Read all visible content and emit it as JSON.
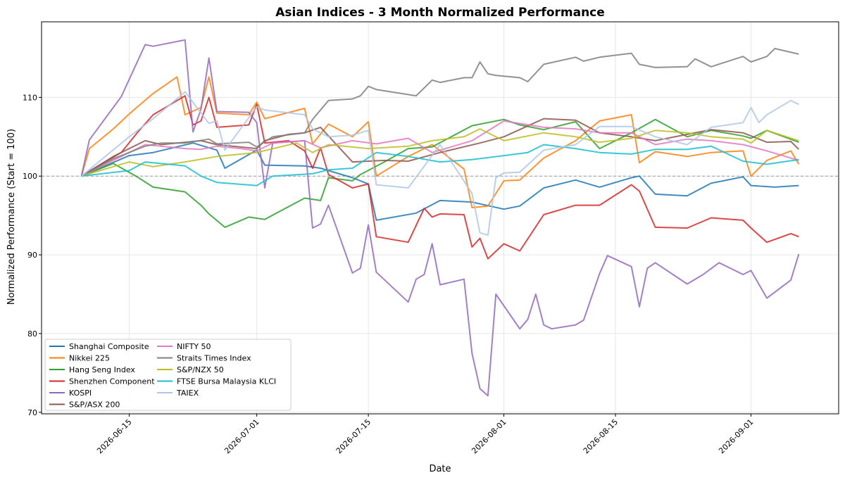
{
  "chart_data": {
    "type": "line",
    "title": "Asian Indices - 3 Month Normalized Performance",
    "xlabel": "Date",
    "ylabel": "Normalized Performance (Start = 100)",
    "xlim": [
      "2026-06-04",
      "2026-09-12"
    ],
    "ylim": [
      69.8,
      119.6
    ],
    "x_ticks": [
      "2026-06-15",
      "2026-07-01",
      "2026-07-15",
      "2026-08-01",
      "2026-08-15",
      "2026-09-01"
    ],
    "y_ticks": [
      70,
      80,
      90,
      100,
      110
    ],
    "reference_line": 100,
    "grid": true,
    "legend_position": "lower-left",
    "series": [
      {
        "name": "Shanghai Composite",
        "color": "#1f77b4",
        "x": [
          "2026-06-09",
          "2026-06-15",
          "2026-06-18",
          "2026-06-23",
          "2026-06-26",
          "2026-06-27",
          "2026-07-01",
          "2026-07-02",
          "2026-07-07",
          "2026-07-09",
          "2026-07-13",
          "2026-07-15",
          "2026-07-16",
          "2026-07-21",
          "2026-07-24",
          "2026-07-28",
          "2026-08-01",
          "2026-08-03",
          "2026-08-06",
          "2026-08-10",
          "2026-08-13",
          "2026-08-17",
          "2026-08-18",
          "2026-08-20",
          "2026-08-24",
          "2026-08-27",
          "2026-08-31",
          "2026-09-01",
          "2026-09-04",
          "2026-09-07"
        ],
        "values": [
          100,
          102.6,
          103,
          104.2,
          103.3,
          101.0,
          103.3,
          101.4,
          101.3,
          101.0,
          99.8,
          99.0,
          94.4,
          95.3,
          96.9,
          96.7,
          95.8,
          96.2,
          98.5,
          99.5,
          98.6,
          99.8,
          100.0,
          97.7,
          97.5,
          99.1,
          99.9,
          98.8,
          98.6,
          98.8
        ]
      },
      {
        "name": "Nikkei 225",
        "color": "#ff7f0e",
        "x": [
          "2026-06-09",
          "2026-06-10",
          "2026-06-13",
          "2026-06-15",
          "2026-06-18",
          "2026-06-21",
          "2026-06-22",
          "2026-06-24",
          "2026-06-25",
          "2026-06-26",
          "2026-06-30",
          "2026-07-01",
          "2026-07-02",
          "2026-07-07",
          "2026-07-08",
          "2026-07-10",
          "2026-07-13",
          "2026-07-15",
          "2026-07-16",
          "2026-07-20",
          "2026-07-23",
          "2026-07-27",
          "2026-07-28",
          "2026-07-30",
          "2026-08-01",
          "2026-08-03",
          "2026-08-06",
          "2026-08-10",
          "2026-08-13",
          "2026-08-17",
          "2026-08-18",
          "2026-08-20",
          "2026-08-24",
          "2026-08-27",
          "2026-08-31",
          "2026-09-01",
          "2026-09-03",
          "2026-09-06",
          "2026-09-07"
        ],
        "values": [
          100,
          103.5,
          106,
          107.9,
          110.5,
          112.6,
          107.8,
          108.7,
          112.6,
          108.0,
          107.8,
          109.4,
          107.3,
          108.6,
          104.1,
          106.6,
          105.0,
          106.9,
          100.0,
          102.5,
          104.0,
          100.9,
          96.0,
          96.2,
          99.4,
          99.5,
          102.3,
          104.5,
          107.0,
          107.8,
          101.7,
          103.1,
          102.5,
          103.0,
          103.2,
          100.0,
          102.0,
          103.2,
          101.5
        ]
      },
      {
        "name": "Hang Seng Index",
        "color": "#2ca02c",
        "x": [
          "2026-06-09",
          "2026-06-13",
          "2026-06-16",
          "2026-06-18",
          "2026-06-22",
          "2026-06-24",
          "2026-06-25",
          "2026-06-27",
          "2026-06-30",
          "2026-07-02",
          "2026-07-07",
          "2026-07-09",
          "2026-07-10",
          "2026-07-13",
          "2026-07-14",
          "2026-07-17",
          "2026-07-20",
          "2026-07-23",
          "2026-07-28",
          "2026-08-01",
          "2026-08-03",
          "2026-08-06",
          "2026-08-10",
          "2026-08-13",
          "2026-08-17",
          "2026-08-20",
          "2026-08-24",
          "2026-08-27",
          "2026-08-31",
          "2026-09-01",
          "2026-09-03",
          "2026-09-07"
        ],
        "values": [
          100,
          101.6,
          99.9,
          98.6,
          98.0,
          96.3,
          95.2,
          93.5,
          94.8,
          94.5,
          97.2,
          96.9,
          99.8,
          99.4,
          100.2,
          101.8,
          103.5,
          103.7,
          106.4,
          107.2,
          106.5,
          105.9,
          106.9,
          103.5,
          105.5,
          107.2,
          105.0,
          105.8,
          105.1,
          104.8,
          105.8,
          104.3
        ]
      },
      {
        "name": "Shenzhen Component",
        "color": "#d62728",
        "x": [
          "2026-06-09",
          "2026-06-14",
          "2026-06-16",
          "2026-06-18",
          "2026-06-22",
          "2026-06-23",
          "2026-06-24",
          "2026-06-25",
          "2026-06-26",
          "2026-06-30",
          "2026-07-01",
          "2026-07-02",
          "2026-07-05",
          "2026-07-07",
          "2026-07-08",
          "2026-07-09",
          "2026-07-10",
          "2026-07-13",
          "2026-07-15",
          "2026-07-16",
          "2026-07-20",
          "2026-07-22",
          "2026-07-23",
          "2026-07-24",
          "2026-07-27",
          "2026-07-28",
          "2026-07-29",
          "2026-07-30",
          "2026-08-01",
          "2026-08-03",
          "2026-08-06",
          "2026-08-10",
          "2026-08-13",
          "2026-08-17",
          "2026-08-18",
          "2026-08-20",
          "2026-08-24",
          "2026-08-27",
          "2026-08-31",
          "2026-09-01",
          "2026-09-03",
          "2026-09-06",
          "2026-09-07"
        ],
        "values": [
          100,
          103,
          105.5,
          107.8,
          110.2,
          106.5,
          107.0,
          110.0,
          106.2,
          106.5,
          109.1,
          104.2,
          104.5,
          103.2,
          101.0,
          103.6,
          100.2,
          98.5,
          99.0,
          92.3,
          91.6,
          95.9,
          94.8,
          95.2,
          95.1,
          91.0,
          92.1,
          89.5,
          91.4,
          90.5,
          95.1,
          96.3,
          96.3,
          98.9,
          98.1,
          93.5,
          93.4,
          94.7,
          94.4,
          93.4,
          91.6,
          92.7,
          92.3
        ]
      },
      {
        "name": "KOSPI",
        "color": "#9467bd",
        "x": [
          "2026-06-09",
          "2026-06-10",
          "2026-06-14",
          "2026-06-17",
          "2026-06-18",
          "2026-06-22",
          "2026-06-23",
          "2026-06-24",
          "2026-06-25",
          "2026-06-26",
          "2026-06-30",
          "2026-07-01",
          "2026-07-02",
          "2026-07-03",
          "2026-07-07",
          "2026-07-08",
          "2026-07-09",
          "2026-07-10",
          "2026-07-13",
          "2026-07-14",
          "2026-07-15",
          "2026-07-16",
          "2026-07-20",
          "2026-07-21",
          "2026-07-22",
          "2026-07-23",
          "2026-07-24",
          "2026-07-27",
          "2026-07-28",
          "2026-07-29",
          "2026-07-30",
          "2026-07-31",
          "2026-08-03",
          "2026-08-04",
          "2026-08-05",
          "2026-08-06",
          "2026-08-07",
          "2026-08-10",
          "2026-08-11",
          "2026-08-13",
          "2026-08-14",
          "2026-08-17",
          "2026-08-18",
          "2026-08-19",
          "2026-08-20",
          "2026-08-24",
          "2026-08-26",
          "2026-08-28",
          "2026-08-31",
          "2026-09-01",
          "2026-09-03",
          "2026-09-06",
          "2026-09-07"
        ],
        "values": [
          100,
          104.6,
          110.1,
          116.7,
          116.5,
          117.3,
          105.6,
          108.5,
          115.0,
          108.2,
          108.1,
          106.8,
          98.5,
          104.2,
          104.5,
          93.4,
          93.9,
          96.3,
          87.7,
          88.3,
          93.8,
          87.8,
          84.0,
          86.9,
          87.5,
          91.4,
          86.2,
          86.9,
          77.5,
          73.0,
          72.1,
          85.0,
          80.6,
          81.8,
          85.0,
          81.1,
          80.6,
          81.1,
          81.7,
          87.6,
          89.9,
          88.5,
          83.4,
          88.3,
          89.0,
          86.3,
          87.5,
          89.0,
          87.5,
          88.0,
          84.5,
          86.8,
          90.1
        ]
      },
      {
        "name": "S&P/ASX 200",
        "color": "#8c564b",
        "x": [
          "2026-06-09",
          "2026-06-13",
          "2026-06-17",
          "2026-06-19",
          "2026-06-24",
          "2026-06-26",
          "2026-07-01",
          "2026-07-02",
          "2026-07-05",
          "2026-07-07",
          "2026-07-09",
          "2026-07-13",
          "2026-07-17",
          "2026-07-20",
          "2026-07-24",
          "2026-07-29",
          "2026-08-01",
          "2026-08-06",
          "2026-08-10",
          "2026-08-13",
          "2026-08-17",
          "2026-08-20",
          "2026-08-24",
          "2026-08-27",
          "2026-08-31",
          "2026-09-03",
          "2026-09-06",
          "2026-09-07"
        ],
        "values": [
          100,
          102.5,
          104.5,
          104.0,
          104.5,
          104.0,
          103.5,
          104.5,
          105.3,
          105.5,
          106.2,
          101.8,
          102.0,
          101.9,
          103.0,
          104.2,
          105.0,
          107.3,
          107.1,
          105.5,
          105.0,
          104.5,
          105.3,
          105.9,
          105.5,
          104.3,
          104.4,
          103.4
        ]
      },
      {
        "name": "NIFTY 50",
        "color": "#e377c2",
        "x": [
          "2026-06-09",
          "2026-06-15",
          "2026-06-17",
          "2026-06-22",
          "2026-06-24",
          "2026-06-26",
          "2026-06-29",
          "2026-07-01",
          "2026-07-03",
          "2026-07-07",
          "2026-07-09",
          "2026-07-13",
          "2026-07-16",
          "2026-07-20",
          "2026-07-23",
          "2026-07-28",
          "2026-08-01",
          "2026-08-06",
          "2026-08-10",
          "2026-08-13",
          "2026-08-17",
          "2026-08-20",
          "2026-08-24",
          "2026-08-27",
          "2026-08-31",
          "2026-09-03",
          "2026-09-07"
        ],
        "values": [
          100,
          103.0,
          104.0,
          103.5,
          103.4,
          103.8,
          103.5,
          103.2,
          104.2,
          104.5,
          103.6,
          104.5,
          104.1,
          104.8,
          103.0,
          104.5,
          107.0,
          106.2,
          106.0,
          105.5,
          105.5,
          104.0,
          104.7,
          104.5,
          104.0,
          103.2,
          102.0
        ]
      },
      {
        "name": "Straits Times Index",
        "color": "#7f7f7f",
        "x": [
          "2026-06-09",
          "2026-06-13",
          "2026-06-17",
          "2026-06-19",
          "2026-06-22",
          "2026-06-25",
          "2026-06-26",
          "2026-06-30",
          "2026-07-01",
          "2026-07-03",
          "2026-07-07",
          "2026-07-08",
          "2026-07-10",
          "2026-07-13",
          "2026-07-14",
          "2026-07-15",
          "2026-07-16",
          "2026-07-21",
          "2026-07-22",
          "2026-07-23",
          "2026-07-24",
          "2026-07-27",
          "2026-07-28",
          "2026-07-29",
          "2026-07-30",
          "2026-07-31",
          "2026-08-03",
          "2026-08-04",
          "2026-08-06",
          "2026-08-10",
          "2026-08-11",
          "2026-08-13",
          "2026-08-17",
          "2026-08-18",
          "2026-08-20",
          "2026-08-24",
          "2026-08-25",
          "2026-08-27",
          "2026-08-31",
          "2026-09-01",
          "2026-09-03",
          "2026-09-04",
          "2026-09-07"
        ],
        "values": [
          100,
          102.2,
          103.8,
          104.2,
          104.2,
          104.7,
          104.1,
          104.3,
          103.7,
          105.0,
          105.5,
          107.2,
          109.6,
          109.8,
          110.2,
          111.4,
          111.0,
          110.2,
          111.2,
          112.2,
          111.9,
          112.5,
          112.5,
          114.5,
          113.0,
          112.8,
          112.5,
          112.0,
          114.2,
          115.1,
          114.6,
          115.1,
          115.6,
          114.2,
          113.8,
          113.9,
          114.9,
          113.9,
          115.2,
          114.5,
          115.2,
          116.2,
          115.5
        ]
      },
      {
        "name": "S&P/NZX 50",
        "color": "#bcbd22",
        "x": [
          "2026-06-09",
          "2026-06-15",
          "2026-06-18",
          "2026-06-22",
          "2026-06-26",
          "2026-07-01",
          "2026-07-06",
          "2026-07-08",
          "2026-07-10",
          "2026-07-15",
          "2026-07-20",
          "2026-07-23",
          "2026-07-27",
          "2026-07-29",
          "2026-08-01",
          "2026-08-06",
          "2026-08-10",
          "2026-08-13",
          "2026-08-17",
          "2026-08-20",
          "2026-08-24",
          "2026-08-27",
          "2026-08-31",
          "2026-09-01",
          "2026-09-03",
          "2026-09-07"
        ],
        "values": [
          100,
          101.8,
          101.2,
          101.8,
          102.5,
          103.0,
          104.2,
          103.0,
          104.0,
          103.5,
          103.8,
          104.5,
          105.0,
          106.0,
          104.5,
          105.5,
          105.0,
          104.3,
          104.8,
          105.8,
          105.5,
          105.0,
          104.7,
          104.2,
          105.8,
          104.5
        ]
      },
      {
        "name": "FTSE Bursa Malaysia KLCI",
        "color": "#17becf",
        "x": [
          "2026-06-09",
          "2026-06-15",
          "2026-06-17",
          "2026-06-22",
          "2026-06-24",
          "2026-06-26",
          "2026-07-01",
          "2026-07-03",
          "2026-07-08",
          "2026-07-10",
          "2026-07-13",
          "2026-07-16",
          "2026-07-20",
          "2026-07-24",
          "2026-07-28",
          "2026-08-01",
          "2026-08-04",
          "2026-08-06",
          "2026-08-10",
          "2026-08-13",
          "2026-08-17",
          "2026-08-20",
          "2026-08-24",
          "2026-08-27",
          "2026-08-31",
          "2026-09-03",
          "2026-09-07"
        ],
        "values": [
          100,
          100.7,
          101.8,
          101.3,
          100.0,
          99.2,
          98.8,
          100.0,
          100.3,
          100.8,
          101.0,
          103.0,
          102.5,
          101.8,
          102.1,
          102.6,
          103.0,
          104.0,
          103.5,
          103.0,
          102.8,
          103.4,
          103.4,
          103.8,
          101.9,
          101.5,
          102.1
        ]
      },
      {
        "name": "TAIEX",
        "color": "#aec7e8",
        "x": [
          "2026-06-09",
          "2026-06-15",
          "2026-06-18",
          "2026-06-22",
          "2026-06-25",
          "2026-06-26",
          "2026-06-27",
          "2026-07-01",
          "2026-07-02",
          "2026-07-07",
          "2026-07-08",
          "2026-07-10",
          "2026-07-13",
          "2026-07-15",
          "2026-07-16",
          "2026-07-20",
          "2026-07-24",
          "2026-07-28",
          "2026-07-29",
          "2026-07-30",
          "2026-07-31",
          "2026-08-01",
          "2026-08-03",
          "2026-08-06",
          "2026-08-10",
          "2026-08-13",
          "2026-08-17",
          "2026-08-20",
          "2026-08-24",
          "2026-08-27",
          "2026-08-31",
          "2026-09-01",
          "2026-09-02",
          "2026-09-03",
          "2026-09-06",
          "2026-09-07"
        ],
        "values": [
          100,
          105.0,
          107.3,
          110.7,
          106.7,
          107.0,
          103.3,
          108.8,
          108.4,
          107.8,
          106.0,
          105.0,
          105.2,
          105.8,
          98.9,
          98.5,
          104.0,
          97.8,
          92.8,
          92.5,
          99.8,
          100.4,
          100.5,
          103.3,
          104.0,
          106.3,
          106.3,
          105.0,
          104.0,
          106.2,
          106.8,
          108.7,
          106.8,
          107.8,
          109.6,
          109.1
        ]
      }
    ]
  }
}
